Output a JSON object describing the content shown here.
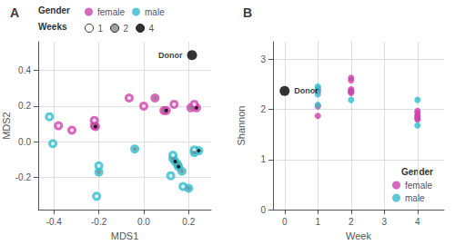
{
  "chart_data": [
    {
      "type": "scatter",
      "title": "A",
      "xlabel": "MDS1",
      "ylabel": "MDS2",
      "xlim": [
        -0.47,
        0.3
      ],
      "ylim": [
        -0.38,
        0.56
      ],
      "xticks": [
        -0.4,
        -0.2,
        {
          "value": 0,
          "label": "0.0"
        },
        0.2
      ],
      "yticks": [
        -0.2,
        {
          "value": 0,
          "label": "0.0"
        },
        0.2,
        0.4
      ],
      "grid": true,
      "legend": "upper left",
      "legend_title": "Gender",
      "series": [
        {
          "name": "female",
          "color": "#CC44AA",
          "x": [
            -0.38,
            -0.32,
            -0.22,
            -0.22,
            -0.215,
            -0.065,
            0,
            0.05,
            0.135,
            0.09,
            0.1,
            0.225,
            0.21,
            0.235
          ],
          "y": [
            0.09,
            0.065,
            0.12,
            0.09,
            0.085,
            0.245,
            0.2,
            0.245,
            0.21,
            0.175,
            0.175,
            0.21,
            0.19,
            0.19
          ],
          "weeks": [
            1,
            1,
            1,
            2,
            4,
            1,
            1,
            2,
            1,
            2,
            4,
            1,
            2,
            4
          ]
        },
        {
          "name": "male",
          "color": "#33BBCC",
          "x": [
            -0.42,
            -0.405,
            -0.2,
            -0.2,
            -0.21,
            -0.04,
            0.12,
            0.13,
            0.13,
            0.14,
            0.15,
            0.155,
            0.17,
            0.175,
            0.2,
            0.225,
            0.225,
            0.245
          ],
          "y": [
            0.14,
            -0.01,
            -0.135,
            -0.17,
            -0.305,
            -0.04,
            -0.19,
            -0.075,
            -0.095,
            -0.11,
            -0.125,
            -0.14,
            -0.165,
            -0.25,
            -0.26,
            -0.045,
            -0.06,
            -0.05
          ],
          "weeks": [
            1,
            1,
            1,
            2,
            1,
            2,
            1,
            1,
            2,
            4,
            2,
            4,
            2,
            1,
            2,
            1,
            2,
            4
          ]
        }
      ],
      "weeks_legend": {
        "title": "Weeks",
        "weeks": [
          1,
          2,
          4
        ],
        "colors": [
          "#ffffff",
          "#888888",
          "#000000"
        ]
      },
      "donor": {
        "label": "Donor",
        "x": 0.215,
        "y": 0.485,
        "color": "#000000"
      }
    },
    {
      "type": "scatter",
      "title": "B",
      "xlabel": "Week",
      "ylabel": "Shannon",
      "xlim": [
        -0.35,
        4.8
      ],
      "ylim": [
        0,
        3.35
      ],
      "xticks": [
        0,
        1,
        2,
        3,
        4
      ],
      "yticks": [
        0,
        1,
        2,
        3
      ],
      "grid": true,
      "legend": "lower right",
      "legend_title": "Gender",
      "series": [
        {
          "name": "female",
          "color": "#CC44AA",
          "x": [
            1,
            1,
            1,
            1,
            2,
            2,
            2,
            2,
            2,
            2,
            4,
            4,
            4,
            4,
            4,
            4
          ],
          "y": [
            2.41,
            2.36,
            2.06,
            1.87,
            2.63,
            2.58,
            2.4,
            2.37,
            2.35,
            2.33,
            1.97,
            1.93,
            1.88,
            1.85,
            1.82,
            1.8
          ]
        },
        {
          "name": "male",
          "color": "#33BBCC",
          "x": [
            1,
            1,
            1,
            1,
            2,
            4,
            4
          ],
          "y": [
            2.46,
            2.4,
            2.3,
            2.09,
            2.19,
            2.19,
            1.68
          ]
        }
      ],
      "donor": {
        "label": "Donor",
        "x": 0,
        "y": 2.37,
        "color": "#000000"
      }
    }
  ]
}
